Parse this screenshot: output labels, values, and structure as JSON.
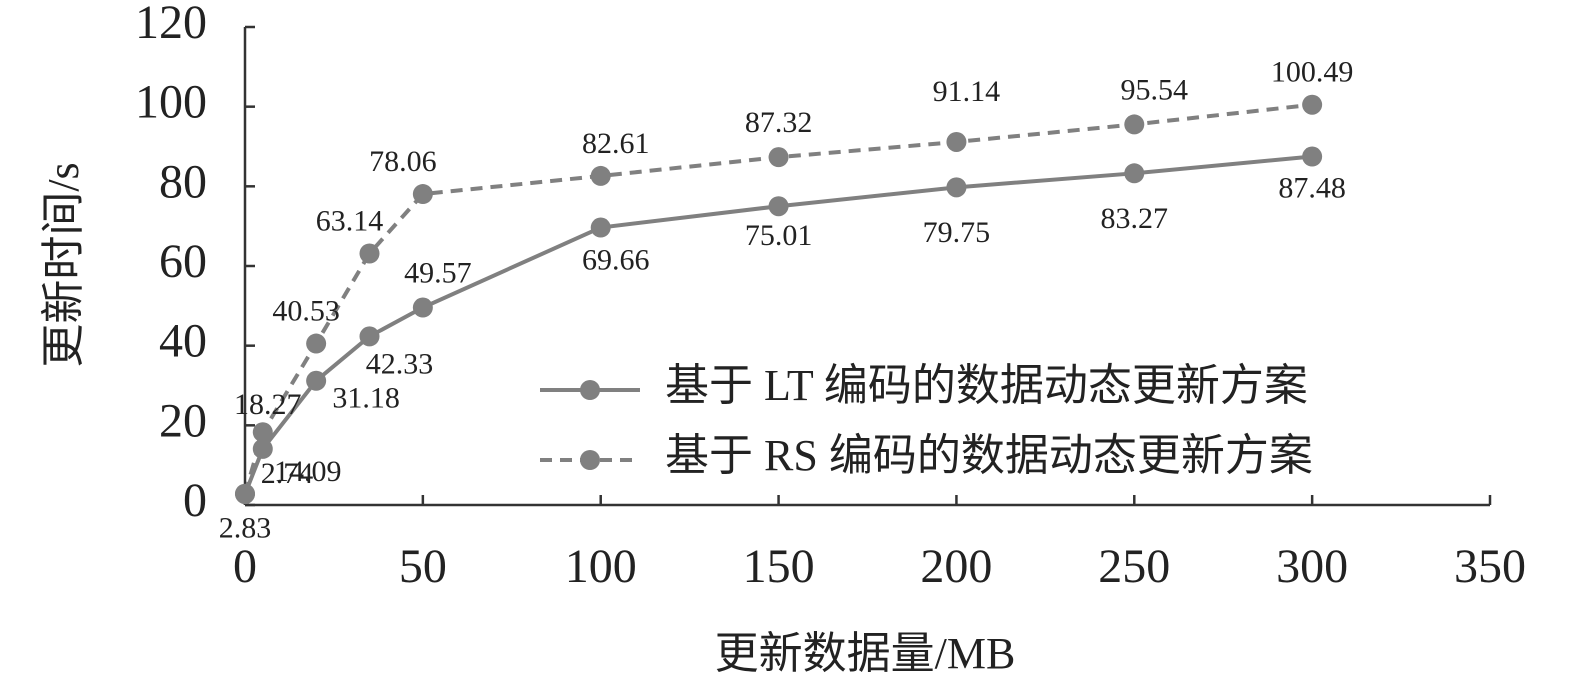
{
  "chart_data": {
    "type": "line",
    "x_label": "更新数据量/MB",
    "y_label": "更新时间/s",
    "x": [
      0,
      5,
      20,
      35,
      50,
      100,
      150,
      200,
      250,
      300
    ],
    "series": [
      {
        "name": "基于 LT 编码的数据动态更新方案",
        "color": "#808080",
        "dash": "solid",
        "values": [
          2.74,
          14.09,
          31.18,
          42.33,
          49.57,
          69.66,
          75.01,
          79.75,
          83.27,
          87.48
        ]
      },
      {
        "name": "基于 RS 编码的数据动态更新方案",
        "color": "#808080",
        "dash": "dashed",
        "values": [
          2.83,
          18.27,
          40.53,
          63.14,
          78.06,
          82.61,
          87.32,
          91.14,
          95.54,
          100.49
        ]
      }
    ],
    "xlim": [
      0,
      350
    ],
    "xticks": [
      0,
      50,
      100,
      150,
      200,
      250,
      300,
      350
    ],
    "ylim": [
      0,
      120
    ],
    "yticks": [
      0,
      20,
      40,
      60,
      80,
      100,
      120
    ],
    "legend": "lower right"
  }
}
